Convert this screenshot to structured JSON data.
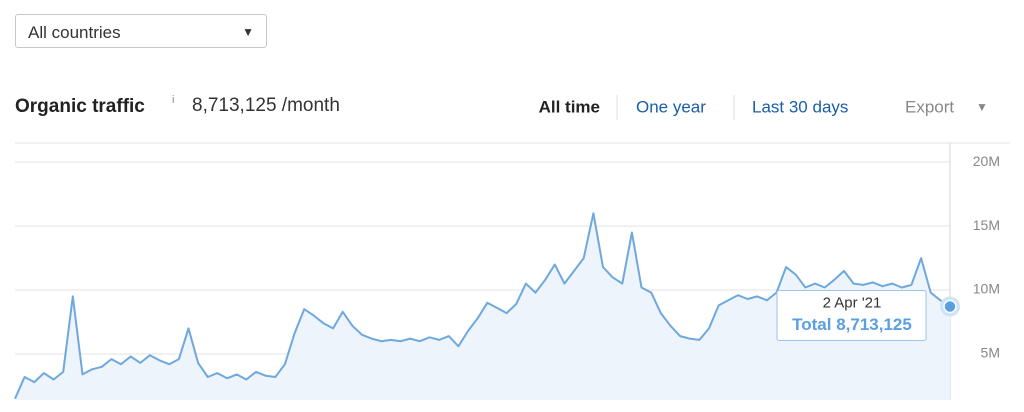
{
  "ui": {
    "country_select": "All countries",
    "title": "Organic traffic",
    "info": "i",
    "traffic": "8,713,125 /month",
    "tabs": [
      "All time",
      "One year",
      "Last 30 days"
    ],
    "export": "Export"
  },
  "chart_data": {
    "type": "line",
    "color": "#6fa8dc",
    "area_color": "#eef4fc",
    "ylim": [
      1400000,
      21500000
    ],
    "yticks": [
      {
        "value": 5000000,
        "label": "5M"
      },
      {
        "value": 10000000,
        "label": "10M"
      },
      {
        "value": 15000000,
        "label": "15M"
      },
      {
        "value": 20000000,
        "label": "20M"
      }
    ],
    "grid": true,
    "values": [
      1500000,
      3200000,
      2800000,
      3500000,
      3000000,
      3600000,
      9500000,
      3400000,
      3800000,
      4000000,
      4600000,
      4200000,
      4800000,
      4300000,
      4900000,
      4500000,
      4200000,
      4600000,
      7000000,
      4300000,
      3200000,
      3500000,
      3100000,
      3400000,
      3000000,
      3600000,
      3300000,
      3200000,
      4200000,
      6600000,
      8500000,
      8000000,
      7400000,
      7000000,
      8300000,
      7200000,
      6500000,
      6200000,
      6000000,
      6100000,
      6000000,
      6200000,
      6000000,
      6300000,
      6100000,
      6400000,
      5600000,
      6800000,
      7800000,
      9000000,
      8600000,
      8200000,
      8900000,
      10500000,
      9800000,
      10800000,
      12000000,
      10500000,
      11500000,
      12500000,
      16000000,
      11800000,
      11000000,
      10500000,
      14500000,
      10200000,
      9800000,
      8200000,
      7200000,
      6400000,
      6200000,
      6100000,
      7000000,
      8800000,
      9200000,
      9600000,
      9300000,
      9500000,
      9200000,
      9800000,
      11800000,
      11200000,
      10200000,
      10500000,
      10200000,
      10800000,
      11500000,
      10500000,
      10400000,
      10600000,
      10300000,
      10500000,
      10200000,
      10400000,
      12500000,
      9800000,
      9200000,
      8713125
    ],
    "tooltip": {
      "date": "2 Apr '21",
      "label": "Total 8,713,125"
    }
  }
}
